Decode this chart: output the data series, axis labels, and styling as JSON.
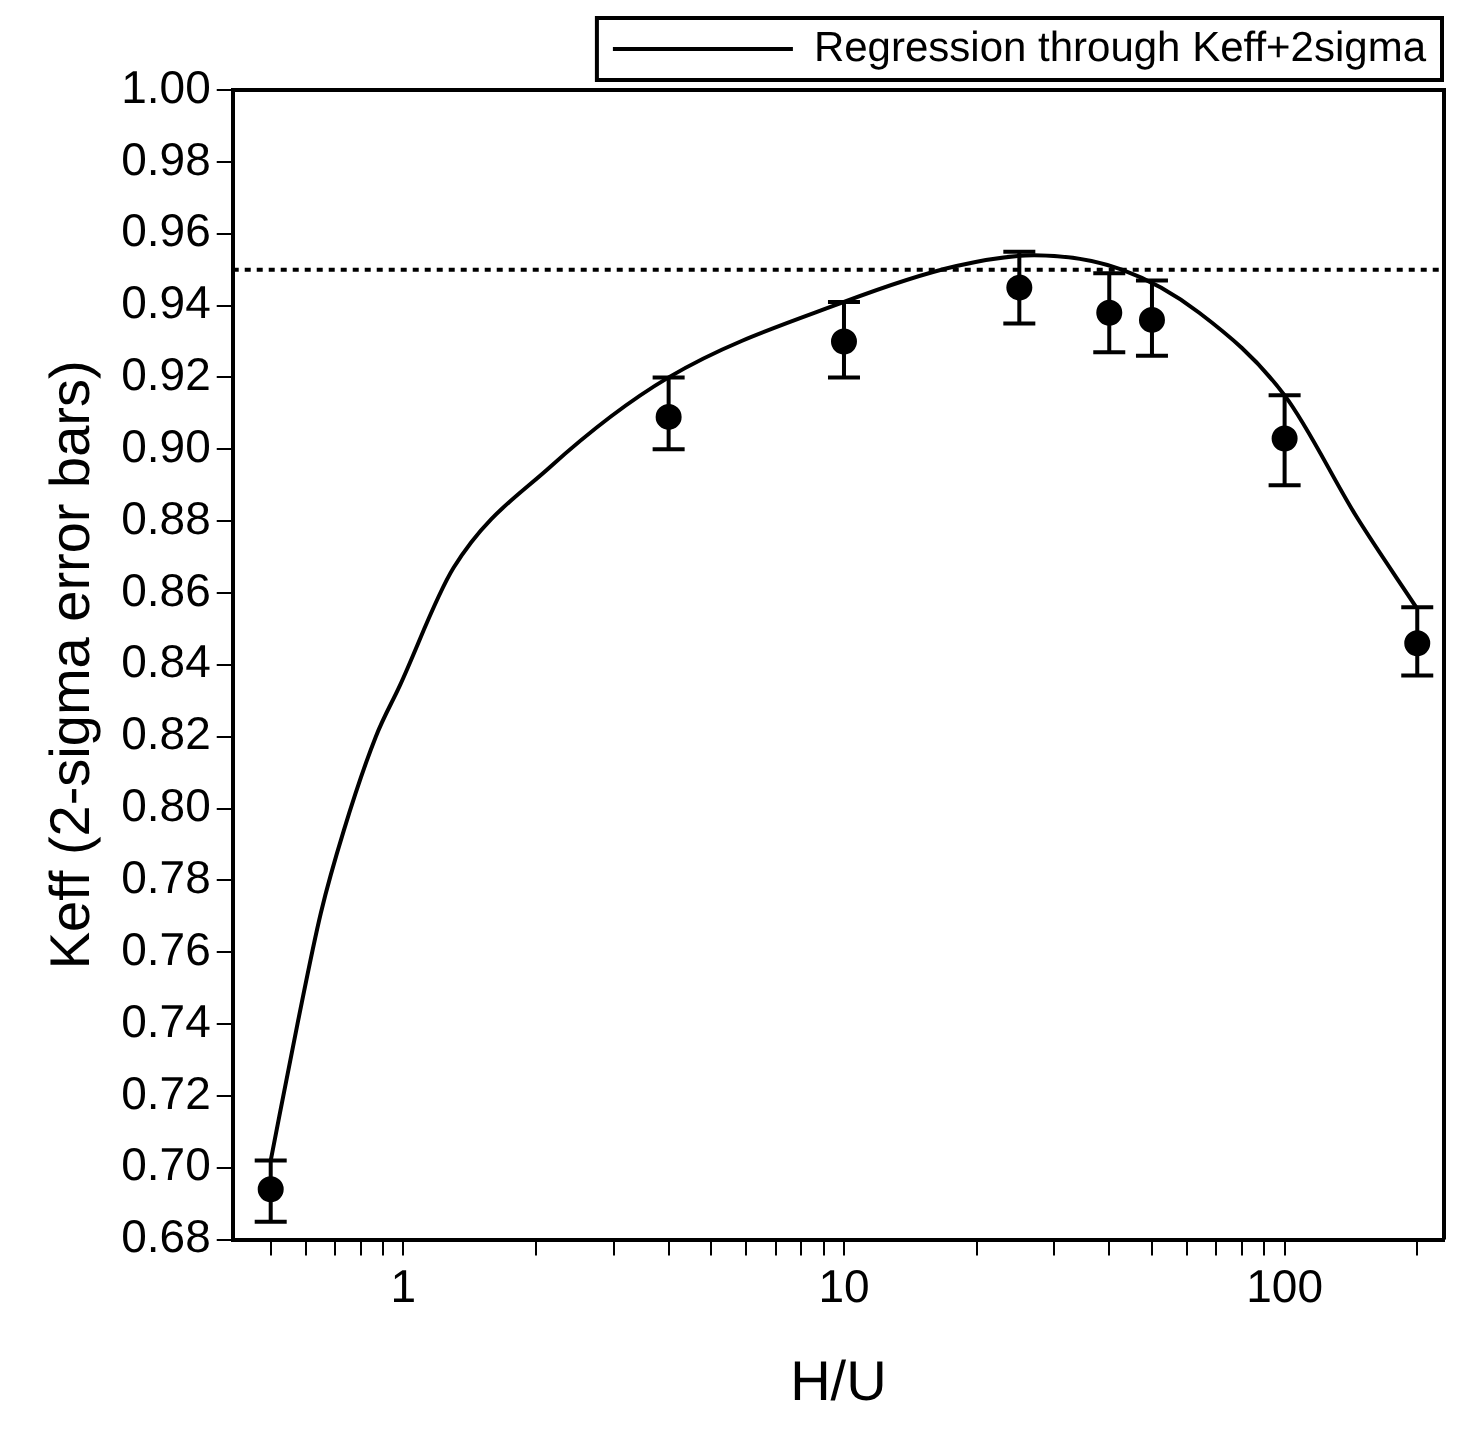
{
  "chart_data": {
    "type": "scatter",
    "xlabel": "H/U",
    "ylabel": "Keff (2-sigma error bars)",
    "log": "x",
    "legend": "top",
    "xlim": [
      0.41,
      230
    ],
    "ylim": [
      0.68,
      1.0
    ],
    "xticks": [
      {
        "value": 0.5,
        "label": null
      },
      {
        "value": 0.6,
        "label": null
      },
      {
        "value": 0.7,
        "label": null
      },
      {
        "value": 0.8,
        "label": null
      },
      {
        "value": 0.9,
        "label": null
      },
      1,
      {
        "value": 2,
        "label": null
      },
      {
        "value": 3,
        "label": null
      },
      {
        "value": 4,
        "label": null
      },
      {
        "value": 5,
        "label": null
      },
      {
        "value": 6,
        "label": null
      },
      {
        "value": 7,
        "label": null
      },
      {
        "value": 8,
        "label": null
      },
      {
        "value": 9,
        "label": null
      },
      10,
      {
        "value": 20,
        "label": null
      },
      {
        "value": 30,
        "label": null
      },
      {
        "value": 40,
        "label": null
      },
      {
        "value": 50,
        "label": null
      },
      {
        "value": 60,
        "label": null
      },
      {
        "value": 70,
        "label": null
      },
      {
        "value": 80,
        "label": null
      },
      {
        "value": 90,
        "label": null
      },
      100,
      {
        "value": 200,
        "label": null
      }
    ],
    "yticks": [
      {
        "value": 0.68,
        "label": "0.68"
      },
      {
        "value": 0.7,
        "label": "0.70"
      },
      {
        "value": 0.72,
        "label": "0.72"
      },
      {
        "value": 0.74,
        "label": "0.74"
      },
      {
        "value": 0.76,
        "label": "0.76"
      },
      {
        "value": 0.78,
        "label": "0.78"
      },
      {
        "value": 0.8,
        "label": "0.80"
      },
      {
        "value": 0.82,
        "label": "0.82"
      },
      {
        "value": 0.84,
        "label": "0.84"
      },
      {
        "value": 0.86,
        "label": "0.86"
      },
      {
        "value": 0.88,
        "label": "0.88"
      },
      {
        "value": 0.9,
        "label": "0.90"
      },
      {
        "value": 0.92,
        "label": "0.92"
      },
      {
        "value": 0.94,
        "label": "0.94"
      },
      {
        "value": 0.96,
        "label": "0.96"
      },
      {
        "value": 0.98,
        "label": "0.98"
      },
      {
        "value": 1.0,
        "label": "1.00"
      }
    ],
    "ref_lines": [
      {
        "axis": "y",
        "value": 0.95,
        "line_style": "dotted",
        "color": "#000000"
      }
    ],
    "series": [
      {
        "color": "#000000",
        "marker": "circle",
        "x": [
          0.5,
          4,
          10,
          25,
          40,
          50,
          100,
          200
        ],
        "values": [
          0.694,
          0.909,
          0.93,
          0.945,
          0.938,
          0.936,
          0.903,
          0.846
        ],
        "errors": [
          [
            0.685,
            0.702
          ],
          [
            0.9,
            0.92
          ],
          [
            0.92,
            0.941
          ],
          [
            0.935,
            0.955
          ],
          [
            0.927,
            0.949
          ],
          [
            0.926,
            0.947
          ],
          [
            0.89,
            0.915
          ],
          [
            0.837,
            0.856
          ]
        ]
      },
      {
        "type": "line",
        "name": "Regression through Keff+2sigma",
        "color": "#000000",
        "marker": "none",
        "line_style": "solid",
        "x": [
          0.5,
          0.575,
          0.65,
          0.733,
          0.866,
          0.98,
          1.3,
          2.15,
          4,
          10,
          18,
          27,
          42.7,
          64,
          100,
          146,
          199
        ],
        "values": [
          0.702,
          0.74,
          0.771,
          0.794,
          0.82,
          0.834,
          0.867,
          0.895,
          0.92,
          0.941,
          0.951,
          0.954,
          0.95,
          0.938,
          0.915,
          0.881,
          0.856
        ]
      }
    ]
  }
}
